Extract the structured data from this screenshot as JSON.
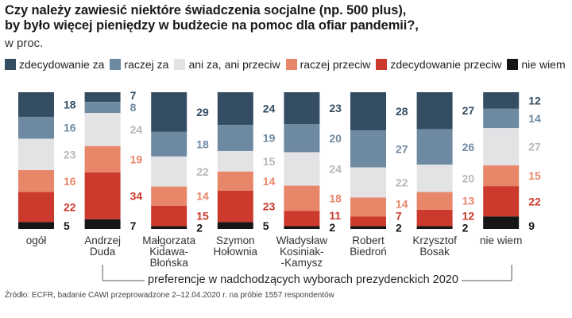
{
  "chart_data": {
    "type": "bar",
    "stacked": true,
    "title": "Czy należy zawiesić niektóre świadczenia socjalne (np. 500 plus), by było więcej pieniędzy w budżecie na pomoc dla ofiar pandemii?,",
    "subtitle": "w proc.",
    "categories": [
      [
        "ogół"
      ],
      [
        "Andrzej",
        "Duda"
      ],
      [
        "Małgorzata",
        "Kidawa-",
        "Błońska"
      ],
      [
        "Szymon",
        "Hołownia"
      ],
      [
        "Władysław",
        "Kosiniak-",
        "-Kamysz"
      ],
      [
        "Robert",
        "Biedroń"
      ],
      [
        "Krzysztof",
        "Bosak"
      ],
      [
        "nie wiem"
      ]
    ],
    "series": [
      {
        "name": "zdecydowanie za",
        "color": "#344d63",
        "values": [
          18,
          7,
          29,
          24,
          23,
          28,
          27,
          12
        ]
      },
      {
        "name": "raczej za",
        "color": "#6e8aa3",
        "values": [
          16,
          8,
          18,
          19,
          20,
          27,
          26,
          14
        ]
      },
      {
        "name": "ani za, ani przeciw",
        "color": "#e3e3e5",
        "values": [
          23,
          24,
          22,
          15,
          24,
          22,
          20,
          27
        ]
      },
      {
        "name": "raczej przeciw",
        "color": "#e8866a",
        "values": [
          16,
          19,
          14,
          14,
          18,
          14,
          13,
          15
        ]
      },
      {
        "name": "zdecydowanie przeciw",
        "color": "#cb3a2c",
        "values": [
          22,
          34,
          15,
          23,
          11,
          7,
          12,
          22
        ]
      },
      {
        "name": "nie wiem",
        "color": "#161616",
        "values": [
          5,
          7,
          2,
          5,
          2,
          2,
          2,
          9
        ]
      }
    ],
    "label_colors": [
      "#344d63",
      "#6e8aa3",
      "#b8b8ba",
      "#e8866a",
      "#cb3a2c",
      "#161616"
    ],
    "bracket_label": "preferencje w nadchodzących wyborach prezydenckich 2020",
    "source": "Źródło: ECFR, badanie CAWI przeprowadzone 2–12.04.2020 r. na próbie 1557 respondentów"
  }
}
